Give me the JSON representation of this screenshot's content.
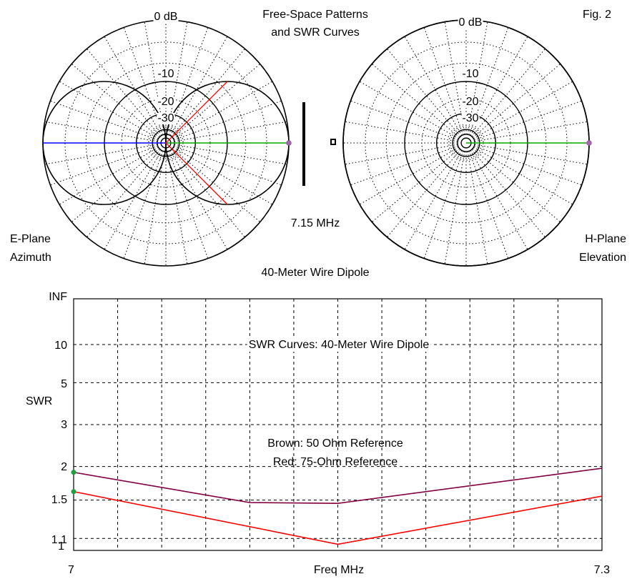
{
  "figure": {
    "title_line1": "Free-Space Patterns",
    "title_line2": "and SWR Curves",
    "fig_label": "Fig. 2",
    "frequency": "7.15 MHz",
    "antenna_label": "40-Meter Wire Dipole"
  },
  "chart_data": [
    {
      "type": "polar",
      "name": "E-Plane Azimuth",
      "label_line1": "E-Plane",
      "label_line2": "Azimuth",
      "ring_labels": [
        "0 dB",
        "-10",
        "-20",
        "-30"
      ],
      "pattern": "figure-eight",
      "lobe_peak_db": 0,
      "lobe_axis_deg": [
        0,
        180
      ],
      "beamwidth_markers_deg": [
        -45,
        45
      ],
      "colors": {
        "pattern": "#000000",
        "forward_ray": "#00aa00",
        "back_ray": "#0000ff",
        "beamwidth": "#ff0000",
        "grid": "#000000"
      }
    },
    {
      "type": "polar",
      "name": "H-Plane Elevation",
      "label_line1": "H-Plane",
      "label_line2": "Elevation",
      "ring_labels": [
        "0 dB",
        "-10",
        "-20",
        "-30"
      ],
      "pattern": "circle",
      "lobe_peak_db": 0,
      "colors": {
        "pattern": "#000000",
        "forward_ray": "#00aa00",
        "grid": "#000000"
      }
    },
    {
      "type": "line",
      "title": "SWR Curves: 40-Meter Wire Dipole",
      "xlabel": "Freq MHz",
      "ylabel": "SWR",
      "x_ticks": [
        "7",
        "7.3"
      ],
      "y_ticks": [
        "INF",
        "10",
        "5",
        "3",
        "2",
        "1.5",
        "1.1",
        "1"
      ],
      "xlim": [
        7,
        7.3
      ],
      "ylim": [
        1,
        "INF"
      ],
      "legend_line1": "Brown: 50 Ohm Reference",
      "legend_line2": "Red: 75-Ohm Reference",
      "grid": true,
      "series": [
        {
          "name": "Brown: 50 Ohm Reference",
          "color": "#800040",
          "x": [
            7.0,
            7.1,
            7.15,
            7.3
          ],
          "y": [
            1.9,
            1.47,
            1.46,
            1.97
          ]
        },
        {
          "name": "Red: 75-Ohm Reference",
          "color": "#ff0000",
          "x": [
            7.0,
            7.15,
            7.3
          ],
          "y": [
            1.61,
            1.05,
            1.55
          ]
        }
      ]
    }
  ]
}
